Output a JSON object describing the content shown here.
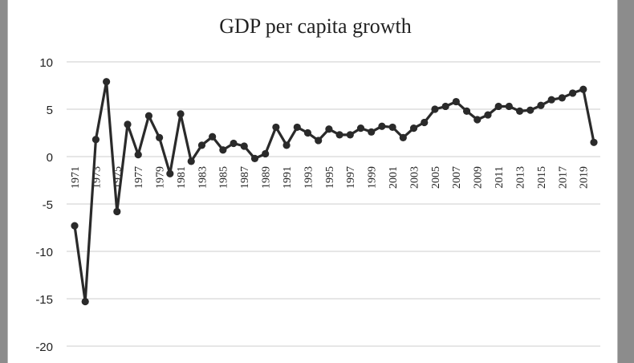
{
  "chart_data": {
    "type": "line",
    "title": "GDP per capita growth",
    "xlabel": "",
    "ylabel": "",
    "ylim": [
      -20,
      10
    ],
    "yticks": [
      10,
      5,
      0,
      -5,
      -10,
      -15,
      -20
    ],
    "xtick_labels": [
      "1971",
      "1973",
      "1975",
      "1977",
      "1979",
      "1981",
      "1983",
      "1985",
      "1987",
      "1989",
      "1991",
      "1993",
      "1995",
      "1997",
      "1999",
      "2001",
      "2003",
      "2005",
      "2007",
      "2009",
      "2011",
      "2013",
      "2015",
      "2017",
      "2019"
    ],
    "grid": "horizontal",
    "legend": "none",
    "colors": {
      "line": "#2a2a2a",
      "marker": "#2a2a2a",
      "grid": "#cccccc"
    },
    "x": [
      1971,
      1972,
      1973,
      1974,
      1975,
      1976,
      1977,
      1978,
      1979,
      1980,
      1981,
      1982,
      1983,
      1984,
      1985,
      1986,
      1987,
      1988,
      1989,
      1990,
      1991,
      1992,
      1993,
      1994,
      1995,
      1996,
      1997,
      1998,
      1999,
      2000,
      2001,
      2002,
      2003,
      2004,
      2005,
      2006,
      2007,
      2008,
      2009,
      2010,
      2011,
      2012,
      2013,
      2014,
      2015,
      2016,
      2017,
      2018,
      2019,
      2020
    ],
    "values": [
      -7.3,
      -15.3,
      1.8,
      7.9,
      -5.8,
      3.4,
      0.2,
      4.3,
      2.0,
      -1.8,
      4.5,
      -0.5,
      1.2,
      2.1,
      0.7,
      1.4,
      1.1,
      -0.2,
      0.3,
      3.1,
      1.2,
      3.1,
      2.5,
      1.7,
      2.9,
      2.3,
      2.3,
      3.0,
      2.6,
      3.2,
      3.1,
      2.0,
      3.0,
      3.6,
      5.0,
      5.3,
      5.8,
      4.8,
      3.9,
      4.4,
      5.3,
      5.3,
      4.8,
      4.9,
      5.4,
      6.0,
      6.2,
      6.7,
      7.1,
      1.5
    ]
  }
}
